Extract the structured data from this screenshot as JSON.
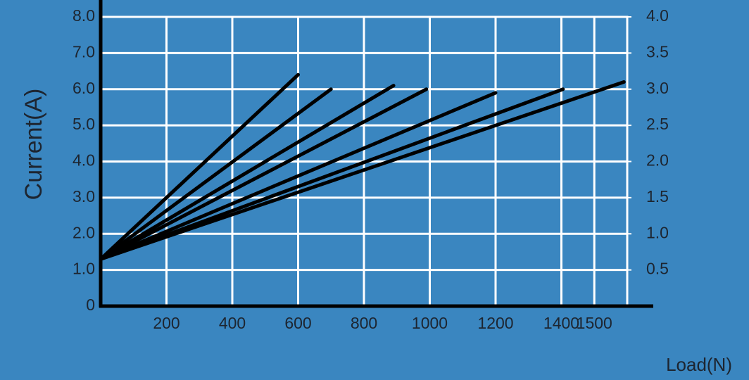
{
  "chart_data": {
    "type": "line",
    "y_label": "Current(A)",
    "x_label": "Load(N)",
    "xlim": [
      0,
      1600
    ],
    "xticks": [
      200,
      400,
      600,
      800,
      1000,
      1200,
      1400,
      1500
    ],
    "ylim": [
      0,
      8
    ],
    "yticks": [
      0,
      {
        "value": 1,
        "label": "1.0"
      },
      {
        "value": 2,
        "label": "2.0"
      },
      {
        "value": 3,
        "label": "3.0"
      },
      {
        "value": 4,
        "label": "4.0"
      },
      {
        "value": 5,
        "label": "5.0"
      },
      {
        "value": 6,
        "label": "6.0"
      },
      {
        "value": 7,
        "label": "7.0"
      },
      {
        "value": 8,
        "label": "8.0"
      }
    ],
    "y2lim": [
      0,
      4
    ],
    "y2ticks": [
      {
        "value": 0.5,
        "label": "0.5"
      },
      {
        "value": 1,
        "label": "1.0"
      },
      {
        "value": 1.5,
        "label": "1.5"
      },
      {
        "value": 2,
        "label": "2.0"
      },
      {
        "value": 2.5,
        "label": "2.5"
      },
      {
        "value": 3,
        "label": "3.0"
      },
      {
        "value": 3.5,
        "label": "3.5"
      },
      {
        "value": 4,
        "label": "4.0"
      }
    ],
    "grid": true,
    "series": [
      {
        "color": "#000000",
        "x": [
          0,
          600
        ],
        "values": [
          1.3,
          6.4
        ]
      },
      {
        "color": "#000000",
        "x": [
          0,
          700
        ],
        "values": [
          1.3,
          6.0
        ]
      },
      {
        "color": "#000000",
        "x": [
          0,
          890
        ],
        "values": [
          1.3,
          6.1
        ]
      },
      {
        "color": "#000000",
        "x": [
          0,
          990
        ],
        "values": [
          1.3,
          6.0
        ]
      },
      {
        "color": "#000000",
        "x": [
          0,
          1200
        ],
        "values": [
          1.3,
          5.9
        ]
      },
      {
        "color": "#000000",
        "x": [
          0,
          1405
        ],
        "values": [
          1.3,
          6.0
        ]
      },
      {
        "color": "#000000",
        "x": [
          0,
          1590
        ],
        "values": [
          1.3,
          6.2
        ]
      }
    ]
  }
}
